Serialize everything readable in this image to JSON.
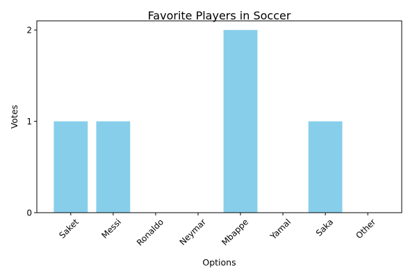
{
  "chart_data": {
    "type": "bar",
    "title": "Favorite Players in Soccer",
    "xlabel": "Options",
    "ylabel": "Votes",
    "categories": [
      "Saket",
      "Messi",
      "Ronaldo",
      "Neymar",
      "Mbappe",
      "Yamal",
      "Saka",
      "Other"
    ],
    "values": [
      1,
      1,
      0,
      0,
      2,
      0,
      1,
      0
    ],
    "ylim": [
      0,
      2.1
    ],
    "yticks": [
      0,
      1,
      2
    ],
    "bar_color": "#87ceeb",
    "grid": false,
    "legend": "none"
  }
}
